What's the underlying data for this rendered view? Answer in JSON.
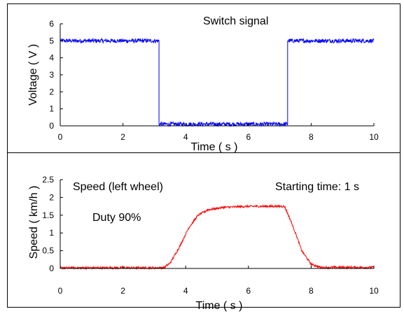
{
  "chart_data": [
    {
      "type": "line",
      "annotations": [
        "Switch signal"
      ],
      "xlabel": "Time ( s )",
      "ylabel": "Voltage ( V )",
      "xlim": [
        0,
        10
      ],
      "ylim": [
        0,
        6
      ],
      "xticks": [
        "0",
        "2",
        "4",
        "6",
        "8",
        "10"
      ],
      "yticks": [
        "0",
        "1",
        "2",
        "3",
        "4",
        "5",
        "6"
      ],
      "grid": false,
      "series": [
        {
          "color": "#0000ff",
          "x": [
            0,
            3.15,
            3.15,
            7.25,
            7.25,
            10
          ],
          "y": [
            5.0,
            5.0,
            0.1,
            0.1,
            5.0,
            5.0
          ],
          "noise": 0.12
        }
      ]
    },
    {
      "type": "line",
      "annotations": [
        "Speed (left wheel)",
        "Duty 90%",
        "Starting time: 1 s"
      ],
      "xlabel": "Time ( s )",
      "ylabel": "Speed ( km/h )",
      "xlim": [
        0,
        10
      ],
      "ylim": [
        0,
        2.5
      ],
      "xticks": [
        "0",
        "2",
        "4",
        "6",
        "8",
        "10"
      ],
      "yticks": [
        "0",
        "0.5",
        "1",
        "1.5",
        "2",
        "2.5"
      ],
      "grid": false,
      "series": [
        {
          "color": "#ff0000",
          "x": [
            0,
            3.3,
            3.5,
            3.8,
            4.1,
            4.4,
            4.7,
            5.2,
            6.0,
            7.15,
            7.3,
            7.5,
            7.7,
            8.0,
            8.3,
            10
          ],
          "y": [
            0.02,
            0.02,
            0.15,
            0.6,
            1.15,
            1.5,
            1.65,
            1.72,
            1.75,
            1.75,
            1.45,
            1.0,
            0.5,
            0.12,
            0.03,
            0.03
          ],
          "noise": 0.03
        }
      ]
    }
  ]
}
